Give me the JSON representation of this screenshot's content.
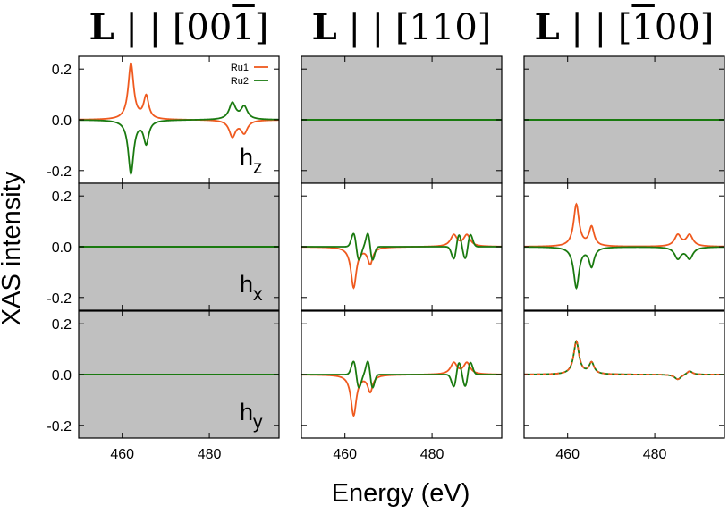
{
  "chart_data": {
    "type": "line",
    "ylabel": "XAS intensity",
    "xlabel": "Energy (eV)",
    "xlim": [
      450,
      496
    ],
    "ylim": [
      -0.25,
      0.25
    ],
    "xticks": [
      460,
      480
    ],
    "yticks": [
      -0.2,
      0.0,
      0.2
    ],
    "xtick_labels": [
      "460",
      "480"
    ],
    "ytick_labels": [
      "-0.2",
      "0.0",
      "0.2"
    ],
    "colors": {
      "ru1": "#ef5a1f",
      "ru2": "#1a7a10",
      "disabled": "#c0c0c0"
    },
    "legend": {
      "placement": "top-right",
      "entries": [
        "Ru1",
        "Ru2"
      ]
    },
    "columns": [
      {
        "title_bold": "L",
        "title_rest": " | | [00",
        "title_bar": "1",
        "title_end": "]"
      },
      {
        "title_bold": "L",
        "title_rest": " | | [110]",
        "title_bar": "",
        "title_end": ""
      },
      {
        "title_bold": "L",
        "title_rest": " | | [",
        "title_bar": "1",
        "title_end": "00]"
      }
    ],
    "rows": [
      {
        "base": "h",
        "sub": "z"
      },
      {
        "base": "h",
        "sub": "x"
      },
      {
        "base": "h",
        "sub": "y"
      }
    ],
    "panels": [
      [
        {
          "active": true,
          "ru1": [
            {
              "e": 462.0,
              "a": 0.22,
              "w": 0.75,
              "t": "s"
            },
            {
              "e": 465.5,
              "a": 0.09,
              "w": 0.7,
              "t": "s"
            },
            {
              "e": 485.3,
              "a": -0.065,
              "w": 0.9,
              "t": "s"
            },
            {
              "e": 488.0,
              "a": -0.05,
              "w": 0.9,
              "t": "s"
            }
          ],
          "ru2": [
            {
              "e": 462.0,
              "a": -0.21,
              "w": 0.75,
              "t": "s"
            },
            {
              "e": 465.5,
              "a": -0.09,
              "w": 0.7,
              "t": "s"
            },
            {
              "e": 485.3,
              "a": 0.065,
              "w": 0.9,
              "t": "s"
            },
            {
              "e": 488.0,
              "a": 0.05,
              "w": 0.9,
              "t": "s"
            }
          ]
        },
        {
          "active": false,
          "ru1": [],
          "ru2": []
        },
        {
          "active": false,
          "ru1": [],
          "ru2": []
        }
      ],
      [
        {
          "active": false,
          "ru1": [],
          "ru2": []
        },
        {
          "active": true,
          "ru1": [
            {
              "e": 462.0,
              "a": -0.16,
              "w": 0.75,
              "t": "s"
            },
            {
              "e": 465.8,
              "a": -0.065,
              "w": 0.7,
              "t": "s"
            },
            {
              "e": 485.0,
              "a": 0.045,
              "w": 0.9,
              "t": "s"
            },
            {
              "e": 488.0,
              "a": 0.045,
              "w": 0.9,
              "t": "s"
            }
          ],
          "ru2": [
            {
              "e": 462.6,
              "a": 0.06,
              "w": 0.9,
              "t": "d"
            },
            {
              "e": 465.8,
              "a": 0.06,
              "w": 0.8,
              "t": "d"
            },
            {
              "e": 485.6,
              "a": -0.055,
              "w": 0.9,
              "t": "d"
            },
            {
              "e": 488.2,
              "a": -0.055,
              "w": 0.9,
              "t": "d"
            }
          ]
        },
        {
          "active": true,
          "ru1": [
            {
              "e": 462.0,
              "a": 0.165,
              "w": 0.75,
              "t": "s"
            },
            {
              "e": 465.5,
              "a": 0.075,
              "w": 0.7,
              "t": "s"
            },
            {
              "e": 485.3,
              "a": 0.045,
              "w": 0.9,
              "t": "s"
            },
            {
              "e": 488.0,
              "a": 0.045,
              "w": 0.9,
              "t": "s"
            }
          ],
          "ru2": [
            {
              "e": 462.0,
              "a": -0.16,
              "w": 0.75,
              "t": "s"
            },
            {
              "e": 465.5,
              "a": -0.075,
              "w": 0.7,
              "t": "s"
            },
            {
              "e": 485.3,
              "a": -0.045,
              "w": 0.9,
              "t": "s"
            },
            {
              "e": 488.0,
              "a": -0.045,
              "w": 0.9,
              "t": "s"
            }
          ]
        }
      ],
      [
        {
          "active": false,
          "ru1": [],
          "ru2": []
        },
        {
          "active": true,
          "ru1": [
            {
              "e": 462.0,
              "a": -0.16,
              "w": 0.75,
              "t": "s"
            },
            {
              "e": 465.8,
              "a": -0.065,
              "w": 0.7,
              "t": "s"
            },
            {
              "e": 485.0,
              "a": 0.045,
              "w": 0.9,
              "t": "s"
            },
            {
              "e": 488.0,
              "a": 0.045,
              "w": 0.9,
              "t": "s"
            }
          ],
          "ru2": [
            {
              "e": 462.6,
              "a": 0.06,
              "w": 0.9,
              "t": "d"
            },
            {
              "e": 465.8,
              "a": 0.06,
              "w": 0.8,
              "t": "d"
            },
            {
              "e": 485.6,
              "a": -0.055,
              "w": 0.9,
              "t": "d"
            },
            {
              "e": 488.2,
              "a": -0.055,
              "w": 0.9,
              "t": "d"
            }
          ]
        },
        {
          "active": true,
          "dashed_ru1": true,
          "ru1": [
            {
              "e": 462.0,
              "a": 0.13,
              "w": 0.75,
              "t": "s"
            },
            {
              "e": 465.5,
              "a": 0.045,
              "w": 0.7,
              "t": "s"
            },
            {
              "e": 485.3,
              "a": -0.02,
              "w": 0.9,
              "t": "s"
            },
            {
              "e": 488.0,
              "a": 0.015,
              "w": 0.8,
              "t": "s"
            }
          ],
          "ru2": [
            {
              "e": 462.0,
              "a": 0.13,
              "w": 0.75,
              "t": "s"
            },
            {
              "e": 465.5,
              "a": 0.045,
              "w": 0.7,
              "t": "s"
            },
            {
              "e": 485.3,
              "a": -0.02,
              "w": 0.9,
              "t": "s"
            },
            {
              "e": 488.0,
              "a": 0.015,
              "w": 0.8,
              "t": "s"
            }
          ]
        }
      ]
    ]
  }
}
